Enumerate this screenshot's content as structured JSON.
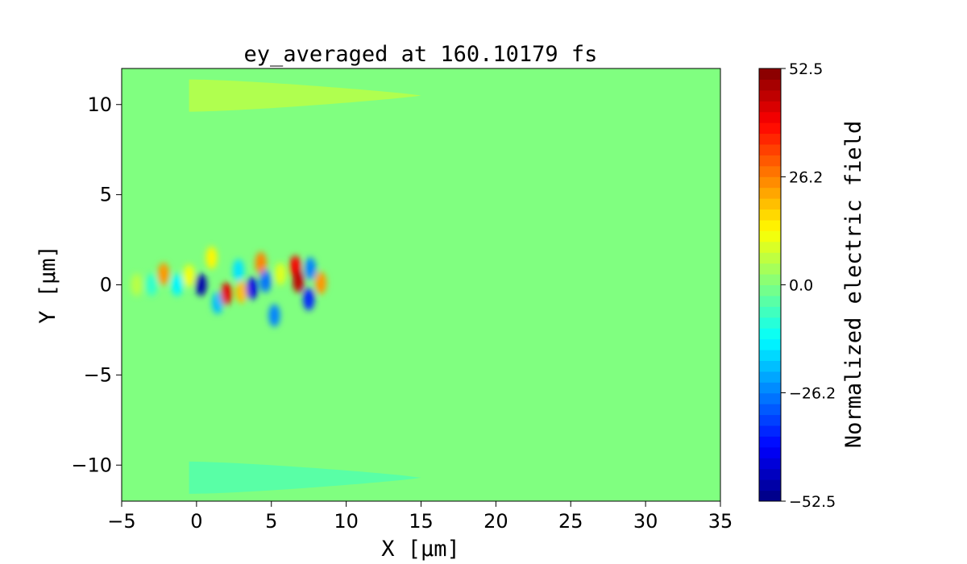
{
  "chart_data": {
    "type": "heatmap",
    "title": "ey_averaged at 160.10179 fs",
    "xlabel": "X [μm]",
    "ylabel": "Y [μm]",
    "xlim": [
      -5,
      35
    ],
    "ylim": [
      -12,
      12
    ],
    "x_ticks": [
      -5,
      0,
      5,
      10,
      15,
      20,
      25,
      30,
      35
    ],
    "x_tick_labels": [
      "−5",
      "0",
      "5",
      "10",
      "15",
      "20",
      "25",
      "30",
      "35"
    ],
    "y_ticks": [
      -10,
      -5,
      0,
      5,
      10
    ],
    "y_tick_labels": [
      "−10",
      "−5",
      "0",
      "5",
      "10"
    ],
    "colormap": "jet",
    "colorbar": {
      "label": "Normalized electric field",
      "vmin": -52.5,
      "vmax": 52.5,
      "ticks": [
        -52.5,
        -26.2,
        0.0,
        26.2,
        52.5
      ],
      "tick_labels": [
        "−52.5",
        "−26.2",
        "0.0",
        "26.2",
        "52.5"
      ]
    },
    "background_value": 0.0,
    "field_features": [
      {
        "x": -4.0,
        "y": 0.0,
        "value": 6
      },
      {
        "x": -3.0,
        "y": 0.0,
        "value": -8
      },
      {
        "x": -2.2,
        "y": 0.6,
        "value": 24
      },
      {
        "x": -1.3,
        "y": 0.0,
        "value": -14
      },
      {
        "x": -0.5,
        "y": 0.5,
        "value": 12
      },
      {
        "x": 0.3,
        "y": 0.0,
        "value": -48
      },
      {
        "x": 1.0,
        "y": 1.5,
        "value": 14
      },
      {
        "x": 1.4,
        "y": -1.0,
        "value": -20
      },
      {
        "x": 2.0,
        "y": -0.5,
        "value": 42
      },
      {
        "x": 2.8,
        "y": 0.8,
        "value": -16
      },
      {
        "x": 3.0,
        "y": -0.4,
        "value": 20
      },
      {
        "x": 3.7,
        "y": -0.2,
        "value": -42
      },
      {
        "x": 4.3,
        "y": 1.2,
        "value": 26
      },
      {
        "x": 4.6,
        "y": 0.2,
        "value": -28
      },
      {
        "x": 5.2,
        "y": -1.7,
        "value": -26
      },
      {
        "x": 5.6,
        "y": 0.6,
        "value": 10
      },
      {
        "x": 6.6,
        "y": 1.0,
        "value": 40
      },
      {
        "x": 6.8,
        "y": 0.2,
        "value": 46
      },
      {
        "x": 7.5,
        "y": -0.8,
        "value": -36
      },
      {
        "x": 7.6,
        "y": 0.9,
        "value": -26
      },
      {
        "x": 8.3,
        "y": 0.1,
        "value": 24
      }
    ],
    "edge_bands": [
      {
        "x_from": -0.5,
        "x_to": 15,
        "y": 10.5,
        "value": 5
      },
      {
        "x_from": -0.5,
        "x_to": 15,
        "y": -10.7,
        "value": -4
      }
    ]
  }
}
